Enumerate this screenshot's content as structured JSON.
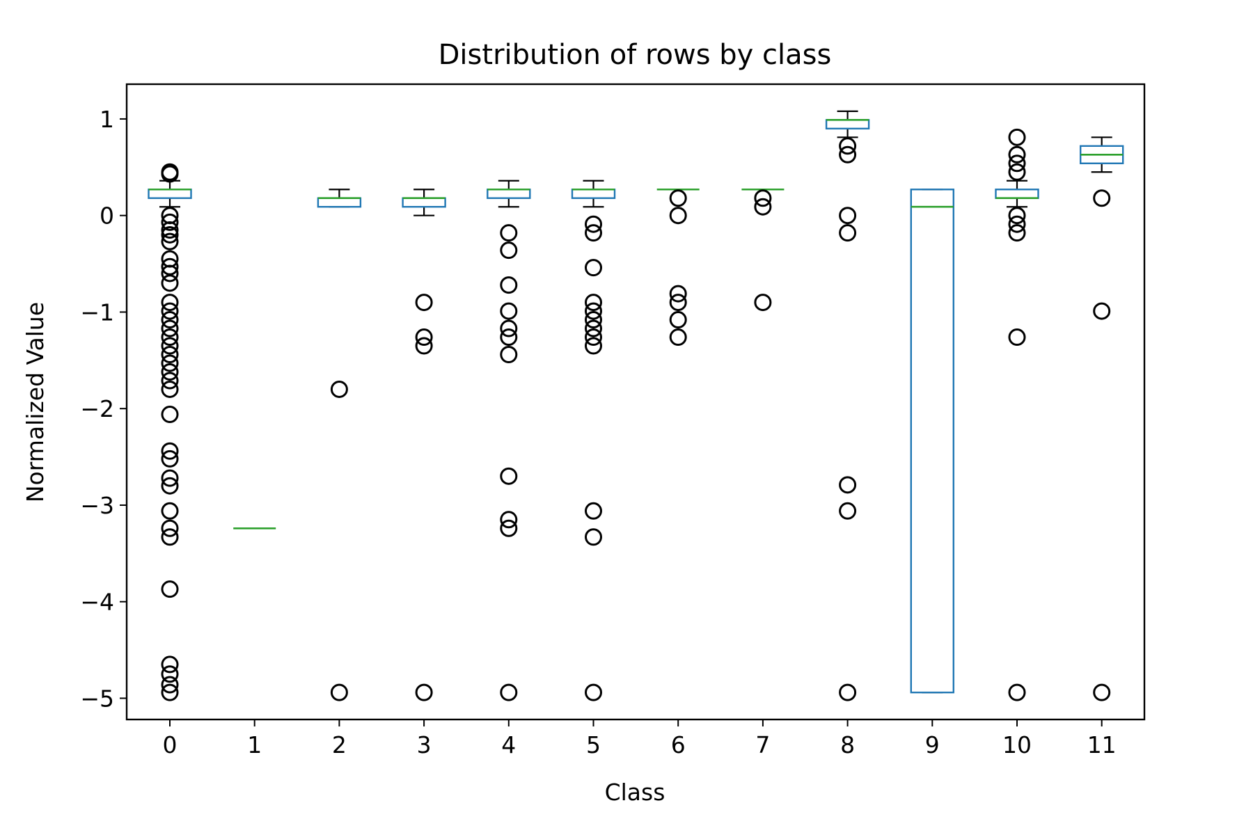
{
  "chart_data": {
    "type": "box",
    "title": "Distribution of rows by class",
    "xlabel": "Class",
    "ylabel": "Normalized Value",
    "ylim": [
      -5.22,
      1.36
    ],
    "yticks": [
      1,
      0,
      -1,
      -2,
      -3,
      -4,
      -5
    ],
    "ytick_labels": [
      "1",
      "0",
      "−1",
      "−2",
      "−3",
      "−4",
      "−5"
    ],
    "categories": [
      "0",
      "1",
      "2",
      "3",
      "4",
      "5",
      "6",
      "7",
      "8",
      "9",
      "10",
      "11"
    ],
    "grid": false,
    "colors": {
      "box": "#1f77b4",
      "median": "#2ca02c",
      "whisker": "#000000",
      "flier": "#000000"
    },
    "boxes": [
      {
        "category": "0",
        "whisker_low": 0.09,
        "q1": 0.18,
        "median": 0.27,
        "q3": 0.27,
        "whisker_high": 0.36,
        "fliers": [
          0.45,
          0.43,
          0.0,
          -0.07,
          -0.15,
          -0.2,
          -0.27,
          -0.45,
          -0.53,
          -0.6,
          -0.7,
          -0.9,
          -0.99,
          -1.08,
          -1.17,
          -1.26,
          -1.35,
          -1.44,
          -1.53,
          -1.62,
          -1.71,
          -1.8,
          -2.06,
          -2.44,
          -2.52,
          -2.72,
          -2.8,
          -3.06,
          -3.24,
          -3.33,
          -3.87,
          -4.65,
          -4.75,
          -4.86,
          -4.94
        ]
      },
      {
        "category": "1",
        "whisker_low": -3.24,
        "q1": -3.24,
        "median": -3.24,
        "q3": -3.24,
        "whisker_high": -3.24,
        "fliers": []
      },
      {
        "category": "2",
        "whisker_low": 0.09,
        "q1": 0.09,
        "median": 0.18,
        "q3": 0.18,
        "whisker_high": 0.27,
        "fliers": [
          -1.8,
          -4.94
        ]
      },
      {
        "category": "3",
        "whisker_low": 0.0,
        "q1": 0.09,
        "median": 0.18,
        "q3": 0.18,
        "whisker_high": 0.27,
        "fliers": [
          -0.9,
          -1.26,
          -1.35,
          -4.94
        ]
      },
      {
        "category": "4",
        "whisker_low": 0.09,
        "q1": 0.18,
        "median": 0.27,
        "q3": 0.27,
        "whisker_high": 0.36,
        "fliers": [
          -0.18,
          -0.36,
          -0.72,
          -0.99,
          -1.17,
          -1.26,
          -1.44,
          -2.7,
          -3.15,
          -3.24,
          -4.94
        ]
      },
      {
        "category": "5",
        "whisker_low": 0.09,
        "q1": 0.18,
        "median": 0.27,
        "q3": 0.27,
        "whisker_high": 0.36,
        "fliers": [
          -0.09,
          -0.18,
          -0.54,
          -0.9,
          -0.99,
          -1.08,
          -1.17,
          -1.26,
          -1.35,
          -3.06,
          -3.33,
          -4.94
        ]
      },
      {
        "category": "6",
        "whisker_low": 0.27,
        "q1": 0.27,
        "median": 0.27,
        "q3": 0.27,
        "whisker_high": 0.27,
        "fliers": [
          0.18,
          0.0,
          -0.81,
          -0.9,
          -1.08,
          -1.26
        ]
      },
      {
        "category": "7",
        "whisker_low": 0.27,
        "q1": 0.27,
        "median": 0.27,
        "q3": 0.27,
        "whisker_high": 0.27,
        "fliers": [
          0.18,
          0.09,
          -0.9
        ]
      },
      {
        "category": "8",
        "whisker_low": 0.81,
        "q1": 0.9,
        "median": 0.99,
        "q3": 0.99,
        "whisker_high": 1.08,
        "fliers": [
          0.72,
          0.63,
          0.0,
          -0.18,
          -2.79,
          -3.06,
          -4.94
        ]
      },
      {
        "category": "9",
        "whisker_low": -4.94,
        "q1": -4.94,
        "median": 0.09,
        "q3": 0.27,
        "whisker_high": 0.27,
        "fliers": []
      },
      {
        "category": "10",
        "whisker_low": 0.09,
        "q1": 0.18,
        "median": 0.18,
        "q3": 0.27,
        "whisker_high": 0.36,
        "fliers": [
          0.81,
          0.63,
          0.54,
          0.45,
          0.0,
          -0.09,
          -0.18,
          -1.26,
          -4.94
        ]
      },
      {
        "category": "11",
        "whisker_low": 0.45,
        "q1": 0.54,
        "median": 0.63,
        "q3": 0.72,
        "whisker_high": 0.81,
        "fliers": [
          0.18,
          -0.99,
          -4.94
        ]
      }
    ]
  }
}
